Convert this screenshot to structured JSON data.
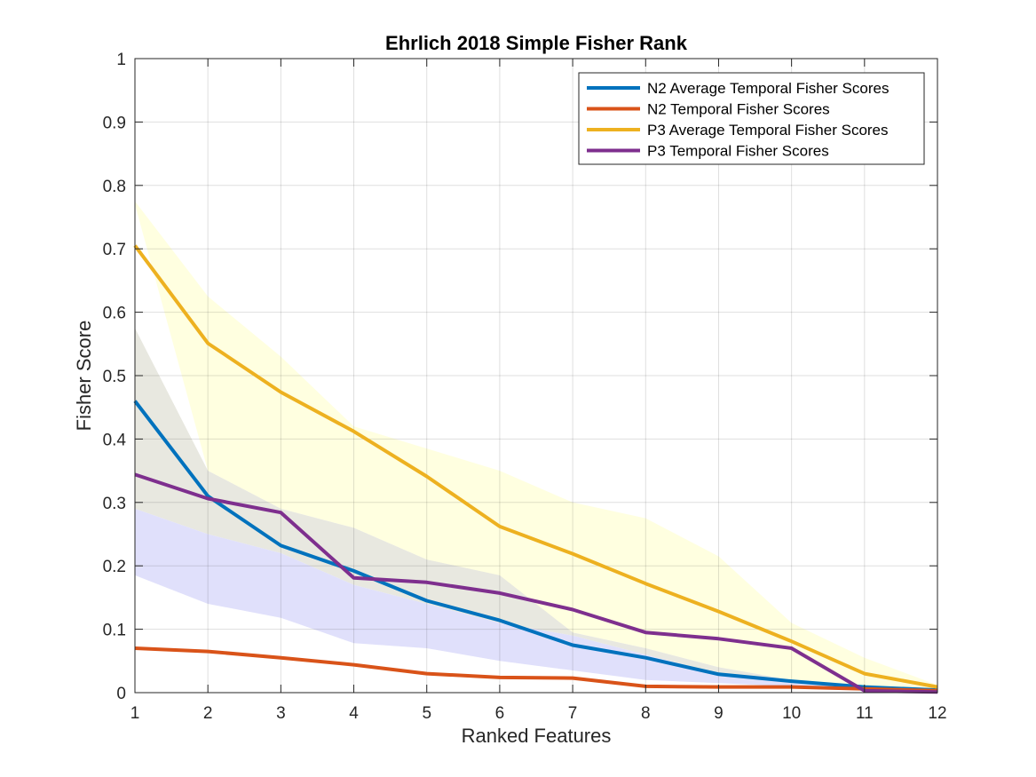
{
  "chart_data": {
    "type": "line",
    "title": "Ehrlich 2018 Simple Fisher Rank",
    "xlabel": "Ranked Features",
    "ylabel": "Fisher Score",
    "x": [
      1,
      2,
      3,
      4,
      5,
      6,
      7,
      8,
      9,
      10,
      11,
      12
    ],
    "xlim": [
      1,
      12
    ],
    "ylim": [
      0,
      1
    ],
    "xticks": [
      "1",
      "2",
      "3",
      "4",
      "5",
      "6",
      "7",
      "8",
      "9",
      "10",
      "11",
      "12"
    ],
    "yticks": [
      "0",
      "0.1",
      "0.2",
      "0.3",
      "0.4",
      "0.5",
      "0.6",
      "0.7",
      "0.8",
      "0.9",
      "1"
    ],
    "grid": true,
    "legend_position": "top-right",
    "bands": [
      {
        "color": "#ffffe0",
        "upper": [
          0.775,
          0.625,
          0.53,
          0.42,
          0.385,
          0.35,
          0.3,
          0.275,
          0.215,
          0.11,
          0.055,
          0.012
        ],
        "lower": [
          0.77,
          0.35,
          0.29,
          0.26,
          0.21,
          0.18,
          0.095,
          0.07,
          0.04,
          0.02,
          0.01,
          0.005
        ]
      },
      {
        "color": "#e8e8e0",
        "upper": [
          0.575,
          0.35,
          0.29,
          0.26,
          0.21,
          0.185,
          0.095,
          0.07,
          0.04,
          0.02,
          0.01,
          0.005
        ],
        "lower": [
          0.29,
          0.25,
          0.22,
          0.17,
          0.14,
          0.11,
          0.09,
          0.06,
          0.03,
          0.015,
          0.008,
          0.004
        ]
      },
      {
        "color": "#e0e0fb",
        "upper": [
          0.29,
          0.25,
          0.22,
          0.17,
          0.14,
          0.11,
          0.09,
          0.06,
          0.03,
          0.015,
          0.008,
          0.004
        ],
        "lower": [
          0.185,
          0.14,
          0.118,
          0.078,
          0.07,
          0.05,
          0.035,
          0.02,
          0.015,
          0.01,
          0.005,
          0.002
        ]
      }
    ],
    "series": [
      {
        "name": "N2 Average Temporal Fisher Scores",
        "color": "#0072BD",
        "values": [
          0.46,
          0.31,
          0.232,
          0.192,
          0.145,
          0.114,
          0.075,
          0.055,
          0.029,
          0.018,
          0.009,
          0.004
        ]
      },
      {
        "name": "N2 Temporal Fisher Scores",
        "color": "#D95319",
        "values": [
          0.07,
          0.065,
          0.055,
          0.044,
          0.03,
          0.024,
          0.023,
          0.01,
          0.009,
          0.009,
          0.006,
          0.003
        ]
      },
      {
        "name": "P3 Average Temporal Fisher Scores",
        "color": "#EDB120",
        "values": [
          0.705,
          0.551,
          0.474,
          0.412,
          0.341,
          0.262,
          0.219,
          0.172,
          0.128,
          0.081,
          0.03,
          0.009
        ]
      },
      {
        "name": "P3 Temporal Fisher Scores",
        "color": "#7E2F8E",
        "values": [
          0.344,
          0.306,
          0.284,
          0.181,
          0.174,
          0.157,
          0.131,
          0.095,
          0.085,
          0.07,
          0.003,
          0.001
        ]
      }
    ]
  }
}
